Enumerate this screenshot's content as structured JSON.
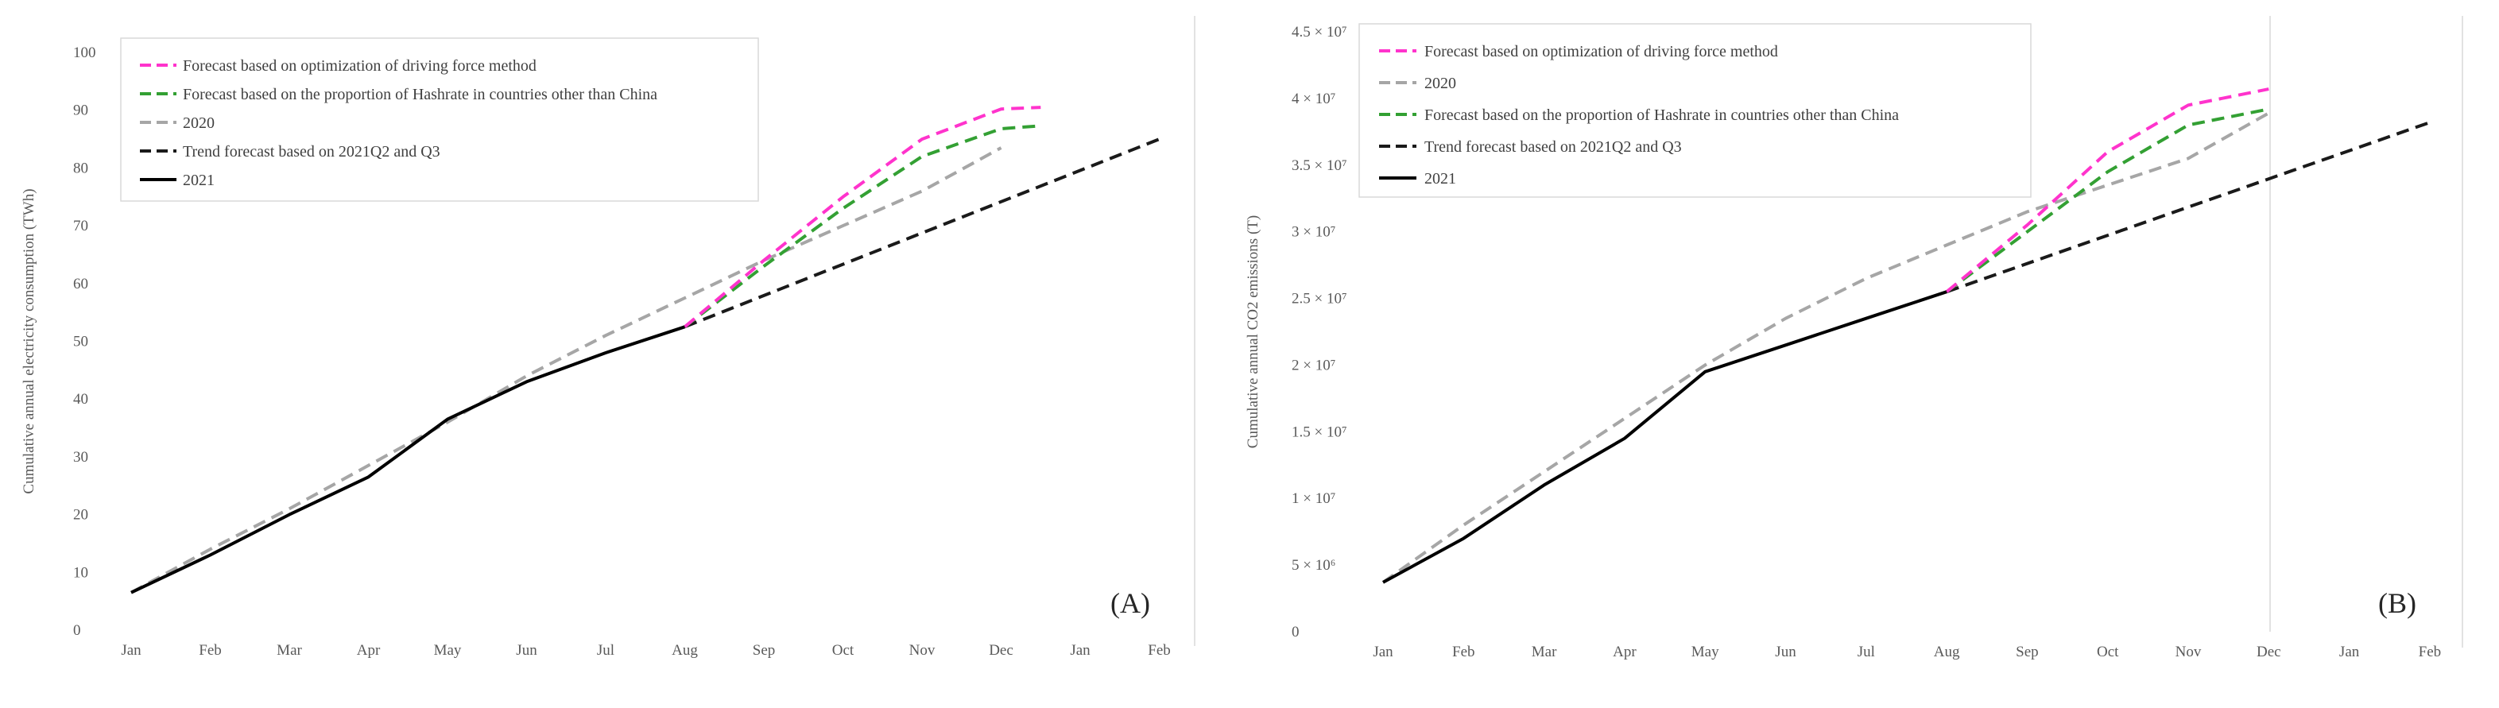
{
  "chart_data": [
    {
      "type": "line",
      "panel_label": "(A)",
      "ylabel": "Cumulative annual electricity consumption (TWh)",
      "xlabel": "",
      "categories": [
        "Jan",
        "Feb",
        "Mar",
        "Apr",
        "May",
        "Jun",
        "Jul",
        "Aug",
        "Sep",
        "Oct",
        "Nov",
        "Dec",
        "Jan",
        "Feb"
      ],
      "ylim": [
        0,
        100
      ],
      "y_ticks": [
        0,
        10,
        20,
        30,
        40,
        50,
        60,
        70,
        80,
        90,
        100
      ],
      "y_tick_labels": [
        "0",
        "10",
        "20",
        "30",
        "40",
        "50",
        "60",
        "70",
        "80",
        "90",
        "100"
      ],
      "legend": {
        "placement": "top-left",
        "entries": [
          {
            "series": 0,
            "label": "Forecast based on optimization of driving force method"
          },
          {
            "series": 1,
            "label": "Forecast based on the proportion of Hashrate in countries other than China"
          },
          {
            "series": 2,
            "label": "2020"
          },
          {
            "series": 3,
            "label": "Trend forecast based on 2021Q2 and Q3"
          },
          {
            "series": 4,
            "label": "2021"
          }
        ]
      },
      "series": [
        {
          "name": "Forecast based on optimization of driving force method",
          "color": "#ff33cc",
          "dash": "dashed",
          "points": [
            [
              7,
              52.5
            ],
            [
              8,
              64
            ],
            [
              9,
              75
            ],
            [
              10,
              85
            ],
            [
              11,
              90.2
            ],
            [
              11.5,
              90.5
            ]
          ]
        },
        {
          "name": "Forecast based on the proportion of Hashrate in countries other than China",
          "color": "#33a033",
          "dash": "dashed",
          "points": [
            [
              7,
              52.5
            ],
            [
              8,
              63
            ],
            [
              9,
              73
            ],
            [
              10,
              82
            ],
            [
              11,
              86.8
            ],
            [
              11.5,
              87.3
            ]
          ]
        },
        {
          "name": "2020",
          "color": "#a6a6a6",
          "dash": "dashed",
          "points": [
            [
              0,
              6.5
            ],
            [
              1,
              14
            ],
            [
              2,
              21
            ],
            [
              3,
              28.5
            ],
            [
              4,
              36
            ],
            [
              5,
              44
            ],
            [
              6,
              51
            ],
            [
              7,
              57.5
            ],
            [
              8,
              64
            ],
            [
              9,
              70
            ],
            [
              10,
              76
            ],
            [
              11,
              83.5
            ]
          ]
        },
        {
          "name": "Trend forecast based on 2021Q2 and Q3",
          "color": "#1a1a1a",
          "dash": "dashed",
          "points": [
            [
              7,
              52.5
            ],
            [
              13,
              85
            ]
          ]
        },
        {
          "name": "2021",
          "color": "#000000",
          "dash": "solid",
          "points": [
            [
              0,
              6.5
            ],
            [
              1,
              13
            ],
            [
              2,
              20
            ],
            [
              3,
              26.5
            ],
            [
              4,
              36.5
            ],
            [
              5,
              43
            ],
            [
              6,
              48
            ],
            [
              7,
              52.5
            ]
          ]
        }
      ]
    },
    {
      "type": "line",
      "panel_label": "(B)",
      "ylabel": "Cumulative annual CO2 emissions (T)",
      "xlabel": "",
      "categories": [
        "Jan",
        "Feb",
        "Mar",
        "Apr",
        "May",
        "Jun",
        "Jul",
        "Aug",
        "Sep",
        "Oct",
        "Nov",
        "Dec",
        "Jan",
        "Feb"
      ],
      "ylim": [
        0,
        45000000
      ],
      "y_ticks": [
        0,
        5000000,
        10000000,
        15000000,
        20000000,
        25000000,
        30000000,
        35000000,
        40000000,
        45000000
      ],
      "y_tick_labels": [
        "0",
        "5 × 10⁶",
        "1 × 10⁷",
        "1.5 × 10⁷",
        "2 × 10⁷",
        "2.5 × 10⁷",
        "3 × 10⁷",
        "3.5 × 10⁷",
        "4 × 10⁷",
        "4.5 × 10⁷"
      ],
      "legend": {
        "placement": "top-left",
        "entries": [
          {
            "series": 0,
            "label": "Forecast based on optimization of driving force method"
          },
          {
            "series": 2,
            "label": "2020"
          },
          {
            "series": 1,
            "label": "Forecast based on the proportion of Hashrate in countries other than China"
          },
          {
            "series": 3,
            "label": "Trend forecast based on 2021Q2 and Q3"
          },
          {
            "series": 4,
            "label": "2021"
          }
        ]
      },
      "series": [
        {
          "name": "Forecast based on optimization of driving force method",
          "color": "#ff33cc",
          "dash": "dashed",
          "points": [
            [
              7,
              25500000
            ],
            [
              8,
              30500000
            ],
            [
              9,
              36000000
            ],
            [
              10,
              39500000
            ],
            [
              11,
              40700000
            ]
          ]
        },
        {
          "name": "Forecast based on the proportion of Hashrate in countries other than China",
          "color": "#33a033",
          "dash": "dashed",
          "points": [
            [
              7,
              25500000
            ],
            [
              8,
              30000000
            ],
            [
              9,
              34500000
            ],
            [
              10,
              38000000
            ],
            [
              11,
              39200000
            ]
          ]
        },
        {
          "name": "2020",
          "color": "#a6a6a6",
          "dash": "dashed",
          "points": [
            [
              0,
              3700000
            ],
            [
              1,
              8000000
            ],
            [
              2,
              12000000
            ],
            [
              3,
              16000000
            ],
            [
              4,
              20000000
            ],
            [
              5,
              23500000
            ],
            [
              6,
              26500000
            ],
            [
              7,
              29000000
            ],
            [
              8,
              31500000
            ],
            [
              9,
              33500000
            ],
            [
              10,
              35500000
            ],
            [
              11,
              38900000
            ]
          ]
        },
        {
          "name": "Trend forecast based on 2021Q2 and Q3",
          "color": "#1a1a1a",
          "dash": "dashed",
          "points": [
            [
              7,
              25500000
            ],
            [
              13,
              38200000
            ]
          ]
        },
        {
          "name": "2021",
          "color": "#000000",
          "dash": "solid",
          "points": [
            [
              0,
              3700000
            ],
            [
              1,
              7000000
            ],
            [
              2,
              11000000
            ],
            [
              3,
              14500000
            ],
            [
              4,
              19500000
            ],
            [
              5,
              21500000
            ],
            [
              6,
              23500000
            ],
            [
              7,
              25500000
            ]
          ]
        }
      ]
    }
  ]
}
